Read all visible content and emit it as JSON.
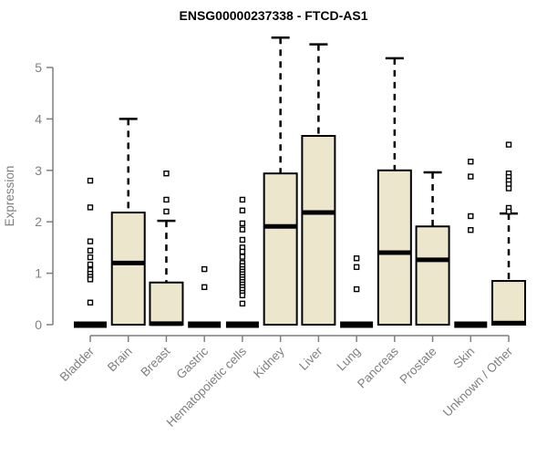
{
  "title": "ENSG00000237338 - FTCD-AS1",
  "colors": {
    "background": "#FFFFFF",
    "box_fill": "#ECE7CC",
    "box_stroke": "#000000",
    "median_color": "#000000",
    "whisker_color": "#000000",
    "outlier_stroke": "#000000",
    "outlier_fill": "#FFFFFF",
    "axis_color": "#7F7F7F",
    "tick_label_color": "#7F7F7F",
    "title_color": "#000000"
  },
  "chart_data": {
    "type": "box",
    "title": "ENSG00000237338 - FTCD-AS1",
    "xlabel": "",
    "ylabel": "Expression",
    "ylim": [
      0,
      5
    ],
    "yticks": [
      0,
      1,
      2,
      3,
      4,
      5
    ],
    "grid": false,
    "legend": "none",
    "x_tick_rotation_deg": 45,
    "categories": [
      "Bladder",
      "Brain",
      "Breast",
      "Gastric",
      "Hematopoietic cells",
      "Kidney",
      "Liver",
      "Lung",
      "Pancreas",
      "Prostate",
      "Skin",
      "Unknown / Other"
    ],
    "boxes": [
      {
        "label": "Bladder",
        "collapsed": true,
        "q1": 0,
        "median": 0,
        "q3": 0,
        "whisker_low": 0,
        "whisker_high": 0,
        "outliers": [
          2.8,
          2.28,
          1.62,
          1.44,
          1.31,
          1.17,
          1.06,
          0.99,
          0.93,
          0.88,
          0.43
        ]
      },
      {
        "label": "Brain",
        "collapsed": false,
        "q1": 0,
        "median": 1.2,
        "q3": 2.18,
        "whisker_low": 0,
        "whisker_high": 4.0,
        "outliers": []
      },
      {
        "label": "Breast",
        "collapsed": false,
        "q1": 0,
        "median": 0.02,
        "q3": 0.82,
        "whisker_low": 0,
        "whisker_high": 2.02,
        "outliers": [
          2.94,
          2.43,
          2.2
        ]
      },
      {
        "label": "Gastric",
        "collapsed": true,
        "q1": 0,
        "median": 0,
        "q3": 0,
        "whisker_low": 0,
        "whisker_high": 0,
        "outliers": [
          1.08,
          0.73
        ]
      },
      {
        "label": "Hematopoietic cells",
        "collapsed": true,
        "q1": 0,
        "median": 0,
        "q3": 0,
        "whisker_low": 0,
        "whisker_high": 0,
        "outliers": [
          2.43,
          2.22,
          1.97,
          1.85,
          1.65,
          1.5,
          1.42,
          1.32,
          1.2,
          1.14,
          1.08,
          1.03,
          0.98,
          0.93,
          0.88,
          0.83,
          0.78,
          0.73,
          0.68,
          0.62,
          0.57,
          0.41
        ]
      },
      {
        "label": "Kidney",
        "collapsed": false,
        "q1": 0,
        "median": 1.91,
        "q3": 2.94,
        "whisker_low": 0,
        "whisker_high": 5.58,
        "outliers": []
      },
      {
        "label": "Liver",
        "collapsed": false,
        "q1": 0,
        "median": 2.18,
        "q3": 3.67,
        "whisker_low": 0,
        "whisker_high": 5.45,
        "outliers": []
      },
      {
        "label": "Lung",
        "collapsed": true,
        "q1": 0,
        "median": 0,
        "q3": 0,
        "whisker_low": 0,
        "whisker_high": 0,
        "outliers": [
          1.29,
          1.12,
          0.69
        ]
      },
      {
        "label": "Pancreas",
        "collapsed": false,
        "q1": 0,
        "median": 1.4,
        "q3": 3.0,
        "whisker_low": 0,
        "whisker_high": 5.18,
        "outliers": []
      },
      {
        "label": "Prostate",
        "collapsed": false,
        "q1": 0,
        "median": 1.26,
        "q3": 1.91,
        "whisker_low": 0,
        "whisker_high": 2.96,
        "outliers": []
      },
      {
        "label": "Skin",
        "collapsed": true,
        "q1": 0,
        "median": 0,
        "q3": 0,
        "whisker_low": 0,
        "whisker_high": 0,
        "outliers": [
          3.17,
          2.88,
          2.11,
          1.84
        ]
      },
      {
        "label": "Unknown / Other",
        "collapsed": false,
        "q1": 0,
        "median": 0.03,
        "q3": 0.85,
        "whisker_low": 0,
        "whisker_high": 2.16,
        "outliers": [
          3.5,
          2.94,
          2.87,
          2.8,
          2.73,
          2.65,
          2.27,
          2.2
        ]
      }
    ]
  }
}
